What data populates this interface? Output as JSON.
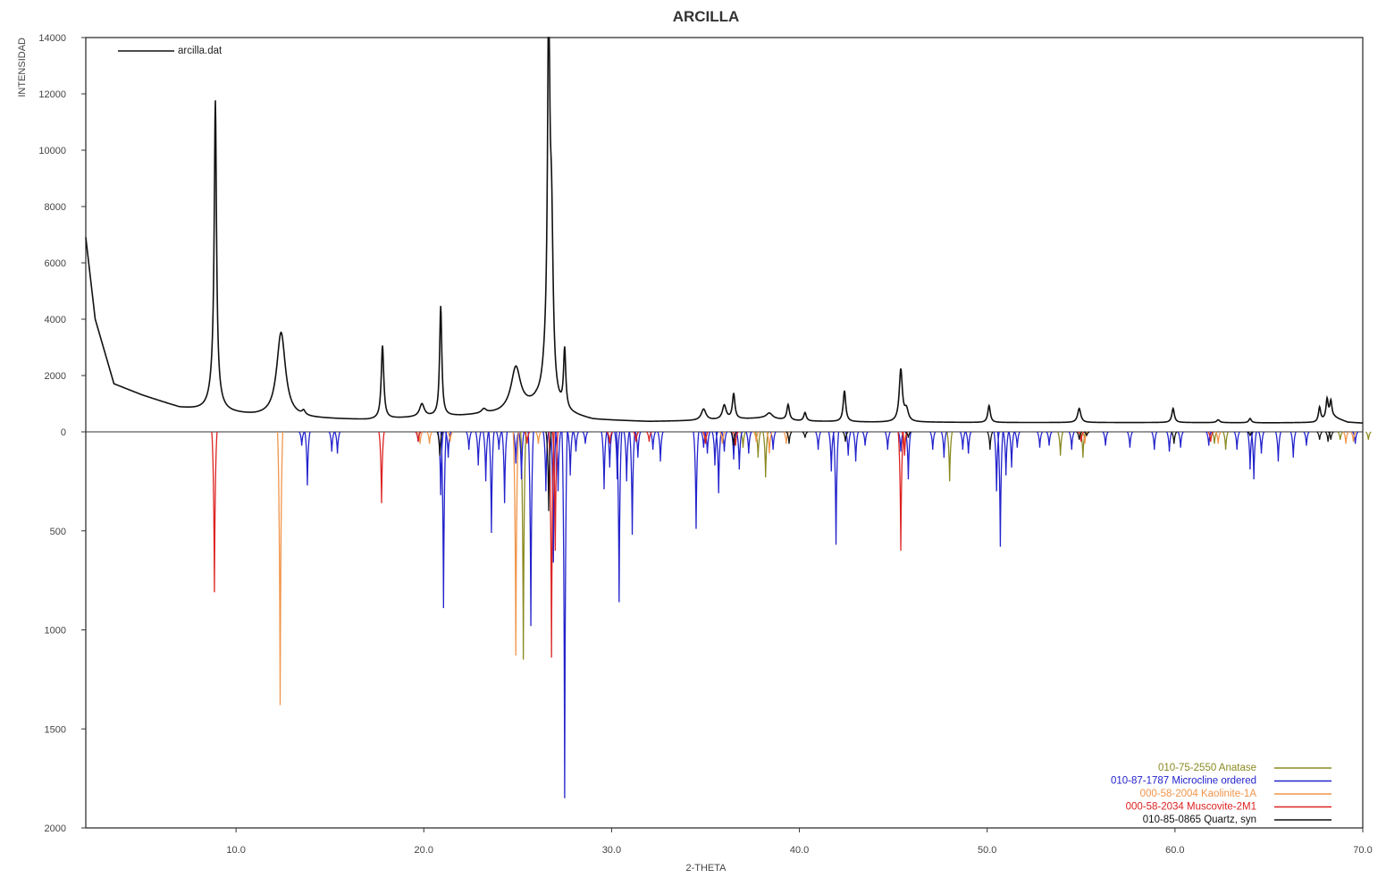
{
  "chart_data": {
    "type": "line",
    "title": "ARCILLA",
    "xlabel": "2-THETA",
    "ylabel": "INTENSIDAD",
    "xlim": [
      2.0,
      70.0
    ],
    "x_ticks": [
      "10.0",
      "20.0",
      "30.0",
      "40.0",
      "50.0",
      "60.0",
      "70.0"
    ],
    "upper_panel": {
      "ylim": [
        0,
        14000
      ],
      "y_ticks": [
        "14000",
        "12000",
        "10000",
        "8000",
        "6000",
        "4000",
        "2000",
        "0"
      ],
      "series": [
        {
          "name": "arcilla.dat",
          "color": "#111111",
          "baseline": [
            [
              2.0,
              6900
            ],
            [
              2.5,
              4000
            ],
            [
              3.5,
              1700
            ],
            [
              5,
              1300
            ],
            [
              7,
              850
            ],
            [
              8.5,
              720
            ],
            [
              11,
              560
            ],
            [
              14,
              470
            ],
            [
              17,
              420
            ],
            [
              20,
              520
            ],
            [
              22,
              560
            ],
            [
              24,
              650
            ],
            [
              26,
              900
            ],
            [
              27.5,
              620
            ],
            [
              29,
              420
            ],
            [
              32,
              360
            ],
            [
              35,
              400
            ],
            [
              38,
              480
            ],
            [
              40,
              380
            ],
            [
              44,
              340
            ],
            [
              47,
              340
            ],
            [
              50,
              330
            ],
            [
              55,
              330
            ],
            [
              60,
              330
            ],
            [
              65,
              320
            ],
            [
              67.5,
              330
            ],
            [
              68.5,
              500
            ],
            [
              69.2,
              340
            ],
            [
              70,
              310
            ]
          ],
          "peaks": [
            {
              "x": 8.9,
              "y": 9900,
              "w": 0.07
            },
            {
              "x": 8.85,
              "y": 1200,
              "w": 0.25
            },
            {
              "x": 12.4,
              "y": 3000,
              "w": 0.28
            },
            {
              "x": 13.6,
              "y": 150,
              "w": 0.1
            },
            {
              "x": 17.8,
              "y": 2600,
              "w": 0.08
            },
            {
              "x": 19.9,
              "y": 450,
              "w": 0.15
            },
            {
              "x": 20.9,
              "y": 3900,
              "w": 0.07
            },
            {
              "x": 23.2,
              "y": 150,
              "w": 0.15
            },
            {
              "x": 24.9,
              "y": 1500,
              "w": 0.3
            },
            {
              "x": 26.65,
              "y": 12500,
              "w": 0.07
            },
            {
              "x": 26.8,
              "y": 5500,
              "w": 0.1
            },
            {
              "x": 26.55,
              "y": 1500,
              "w": 0.25
            },
            {
              "x": 27.5,
              "y": 2100,
              "w": 0.07
            },
            {
              "x": 34.9,
              "y": 400,
              "w": 0.15
            },
            {
              "x": 36.0,
              "y": 500,
              "w": 0.12
            },
            {
              "x": 36.5,
              "y": 900,
              "w": 0.08
            },
            {
              "x": 38.4,
              "y": 200,
              "w": 0.2
            },
            {
              "x": 39.4,
              "y": 550,
              "w": 0.08
            },
            {
              "x": 40.3,
              "y": 300,
              "w": 0.08
            },
            {
              "x": 42.4,
              "y": 1100,
              "w": 0.08
            },
            {
              "x": 45.4,
              "y": 1850,
              "w": 0.1
            },
            {
              "x": 45.7,
              "y": 400,
              "w": 0.12
            },
            {
              "x": 50.1,
              "y": 600,
              "w": 0.08
            },
            {
              "x": 54.9,
              "y": 500,
              "w": 0.1
            },
            {
              "x": 59.9,
              "y": 500,
              "w": 0.08
            },
            {
              "x": 62.3,
              "y": 100,
              "w": 0.1
            },
            {
              "x": 64.0,
              "y": 150,
              "w": 0.08
            },
            {
              "x": 67.7,
              "y": 500,
              "w": 0.07
            },
            {
              "x": 68.1,
              "y": 700,
              "w": 0.07
            },
            {
              "x": 68.3,
              "y": 600,
              "w": 0.07
            }
          ]
        }
      ]
    },
    "lower_panel": {
      "ylim": [
        0,
        2000
      ],
      "inverted": true,
      "y_ticks": [
        "500",
        "1000",
        "1500",
        "2000"
      ],
      "series": [
        {
          "name": "010-75-2550 Anatase",
          "color": "#8a8a22",
          "sticks": [
            [
              25.3,
              1150
            ],
            [
              37.0,
              80
            ],
            [
              37.8,
              130
            ],
            [
              38.2,
              230
            ],
            [
              48.0,
              250
            ],
            [
              53.9,
              120
            ],
            [
              55.1,
              130
            ],
            [
              62.1,
              60
            ],
            [
              62.7,
              90
            ],
            [
              68.8,
              40
            ],
            [
              70.3,
              40
            ]
          ]
        },
        {
          "name": "010-87-1787 Microcline ordered",
          "color": "#2222cc",
          "sticks": [
            [
              13.5,
              70
            ],
            [
              13.8,
              270
            ],
            [
              15.1,
              100
            ],
            [
              15.4,
              110
            ],
            [
              19.7,
              50
            ],
            [
              20.9,
              320
            ],
            [
              21.05,
              890
            ],
            [
              21.3,
              130
            ],
            [
              22.4,
              90
            ],
            [
              22.9,
              170
            ],
            [
              23.3,
              250
            ],
            [
              23.6,
              510
            ],
            [
              24.0,
              90
            ],
            [
              24.3,
              360
            ],
            [
              24.9,
              160
            ],
            [
              25.2,
              240
            ],
            [
              25.7,
              980
            ],
            [
              26.5,
              300
            ],
            [
              26.9,
              660
            ],
            [
              27.15,
              300
            ],
            [
              27.5,
              1850
            ],
            [
              27.8,
              220
            ],
            [
              28.1,
              100
            ],
            [
              28.6,
              60
            ],
            [
              29.6,
              290
            ],
            [
              29.9,
              180
            ],
            [
              30.3,
              240
            ],
            [
              30.4,
              860
            ],
            [
              30.8,
              250
            ],
            [
              31.1,
              520
            ],
            [
              31.4,
              130
            ],
            [
              32.2,
              90
            ],
            [
              32.6,
              150
            ],
            [
              34.5,
              490
            ],
            [
              34.9,
              80
            ],
            [
              35.1,
              110
            ],
            [
              35.5,
              170
            ],
            [
              35.7,
              310
            ],
            [
              36.0,
              100
            ],
            [
              36.5,
              140
            ],
            [
              36.8,
              190
            ],
            [
              37.3,
              110
            ],
            [
              38.6,
              90
            ],
            [
              41.0,
              90
            ],
            [
              41.7,
              200
            ],
            [
              41.95,
              570
            ],
            [
              42.6,
              120
            ],
            [
              43.0,
              150
            ],
            [
              43.5,
              70
            ],
            [
              44.7,
              90
            ],
            [
              45.4,
              100
            ],
            [
              45.8,
              240
            ],
            [
              47.1,
              90
            ],
            [
              47.7,
              130
            ],
            [
              48.7,
              90
            ],
            [
              49.0,
              110
            ],
            [
              50.5,
              300
            ],
            [
              50.7,
              580
            ],
            [
              51.0,
              220
            ],
            [
              51.3,
              180
            ],
            [
              51.6,
              80
            ],
            [
              52.8,
              80
            ],
            [
              53.3,
              70
            ],
            [
              54.5,
              90
            ],
            [
              56.3,
              70
            ],
            [
              57.6,
              80
            ],
            [
              58.9,
              90
            ],
            [
              59.7,
              100
            ],
            [
              60.3,
              80
            ],
            [
              61.8,
              70
            ],
            [
              63.3,
              90
            ],
            [
              64.0,
              190
            ],
            [
              64.2,
              240
            ],
            [
              64.6,
              110
            ],
            [
              65.5,
              150
            ],
            [
              66.3,
              130
            ],
            [
              67.0,
              70
            ],
            [
              69.6,
              60
            ]
          ]
        },
        {
          "name": "000-58-2004 Kaolinite-1A",
          "color": "#f0954a",
          "sticks": [
            [
              12.35,
              1380
            ],
            [
              19.8,
              60
            ],
            [
              20.3,
              60
            ],
            [
              21.4,
              50
            ],
            [
              24.9,
              1130
            ],
            [
              26.1,
              60
            ],
            [
              35.0,
              60
            ],
            [
              35.9,
              60
            ],
            [
              37.7,
              50
            ],
            [
              38.4,
              110
            ],
            [
              39.3,
              60
            ],
            [
              45.6,
              60
            ],
            [
              55.2,
              60
            ],
            [
              62.3,
              60
            ],
            [
              69.1,
              60
            ],
            [
              69.5,
              50
            ]
          ]
        },
        {
          "name": "000-58-2034 Muscovite-2M1",
          "color": "#dd2222",
          "sticks": [
            [
              8.85,
              810
            ],
            [
              17.75,
              360
            ],
            [
              19.7,
              50
            ],
            [
              25.5,
              60
            ],
            [
              26.8,
              1140
            ],
            [
              27.0,
              600
            ],
            [
              29.9,
              60
            ],
            [
              31.3,
              50
            ],
            [
              32.0,
              50
            ],
            [
              35.0,
              60
            ],
            [
              36.6,
              70
            ],
            [
              45.4,
              600
            ],
            [
              45.6,
              120
            ],
            [
              55.0,
              50
            ],
            [
              61.9,
              50
            ]
          ]
        },
        {
          "name": "010-85-0865 Quartz, syn",
          "color": "#111111",
          "sticks": [
            [
              20.85,
              120
            ],
            [
              26.65,
              400
            ],
            [
              36.5,
              70
            ],
            [
              39.45,
              60
            ],
            [
              40.3,
              30
            ],
            [
              42.45,
              50
            ],
            [
              45.8,
              30
            ],
            [
              50.15,
              90
            ],
            [
              54.9,
              40
            ],
            [
              55.3,
              20
            ],
            [
              59.95,
              60
            ],
            [
              64.0,
              20
            ],
            [
              67.7,
              40
            ],
            [
              68.15,
              50
            ],
            [
              68.3,
              40
            ]
          ]
        }
      ]
    }
  }
}
